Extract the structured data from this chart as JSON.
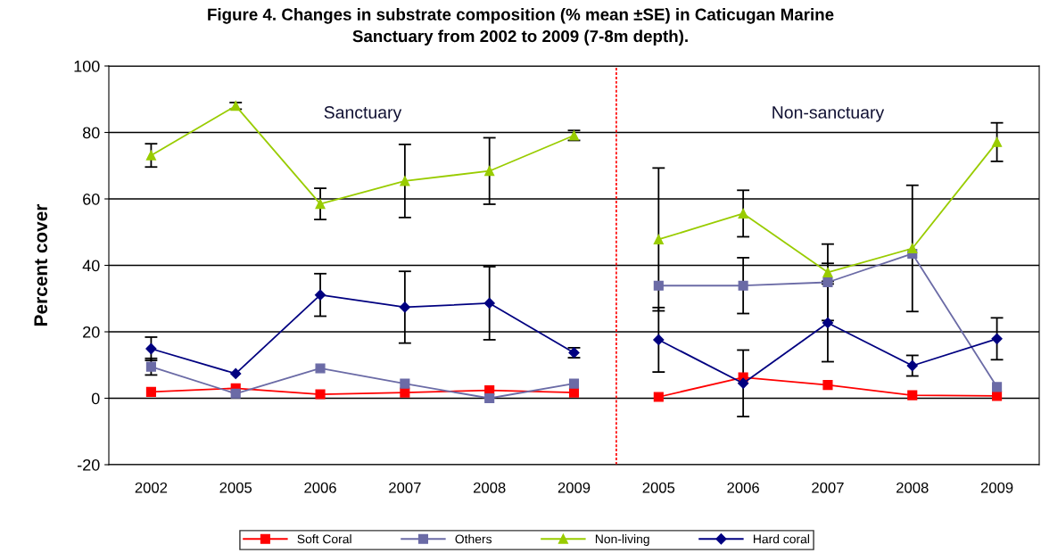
{
  "chart_data": {
    "type": "line",
    "title": "Figure 4. Changes in substrate composition (% mean ±SE) in Caticugan Marine\nSanctuary from 2002 to 2009 (7-8m depth).",
    "ylabel": "Percent cover",
    "categories": [
      "2002",
      "2005",
      "2006",
      "2007",
      "2008",
      "2009",
      "2005",
      "2006",
      "2007",
      "2008",
      "2009"
    ],
    "ylim": [
      -20,
      100
    ],
    "yticks": [
      -20,
      0,
      20,
      40,
      60,
      80,
      100
    ],
    "grid": "y",
    "legend": "bottom",
    "annotations": [
      "Sanctuary",
      "Non-sanctuary"
    ],
    "series": [
      {
        "name": "Soft Coral",
        "color": "#ff0000",
        "marker": "square",
        "values": [
          1.9,
          3.0,
          1.2,
          1.7,
          2.4,
          1.7,
          null,
          null,
          null,
          null,
          null
        ]
      },
      {
        "name": "Others",
        "color": "#6b6ba6",
        "marker": "square",
        "values": [
          9.5,
          1.4,
          9.0,
          4.4,
          0,
          4.4,
          null,
          null,
          null,
          null,
          null
        ],
        "errors": [
          2.5,
          null,
          null,
          null,
          null,
          null,
          null,
          null,
          null,
          null,
          null
        ]
      },
      {
        "name": "Non-living",
        "color": "#99cc00",
        "marker": "triangle",
        "values": [
          73.1,
          88,
          58.5,
          65.4,
          68.4,
          79.1,
          null,
          null,
          null,
          null,
          null
        ],
        "errors": [
          3.5,
          1,
          4.7,
          11,
          10,
          1.5,
          null,
          null,
          null,
          null,
          null
        ]
      },
      {
        "name": "Hard coral",
        "color": "#000080",
        "marker": "diamond",
        "values": [
          14.9,
          7.4,
          31.1,
          27.4,
          28.6,
          13.7,
          null,
          null,
          null,
          null,
          null
        ],
        "errors": [
          3.5,
          null,
          6.4,
          10.8,
          11,
          1.5,
          null,
          null,
          null,
          null,
          null
        ]
      },
      {
        "color": "#ff0000",
        "marker": "square",
        "values": [
          null,
          null,
          null,
          null,
          null,
          null,
          0.4,
          6.3,
          4,
          0.9,
          0.7
        ]
      },
      {
        "color": "#6b6ba6",
        "marker": "square",
        "values": [
          null,
          null,
          null,
          null,
          null,
          null,
          33.9,
          33.9,
          34.9,
          43.5,
          3.4
        ],
        "errors": [
          null,
          null,
          null,
          null,
          null,
          null,
          null,
          8.4,
          11.5,
          null,
          null
        ]
      },
      {
        "color": "#99cc00",
        "marker": "triangle",
        "values": [
          null,
          null,
          null,
          null,
          null,
          null,
          47.8,
          55.6,
          37.9,
          45.1,
          77.1
        ],
        "errors": [
          null,
          null,
          null,
          null,
          null,
          null,
          21.5,
          7,
          2.7,
          19,
          5.8
        ]
      },
      {
        "color": "#000080",
        "marker": "diamond",
        "values": [
          null,
          null,
          null,
          null,
          null,
          null,
          17.6,
          4.5,
          22.7,
          9.8,
          17.9
        ],
        "errors": [
          null,
          null,
          null,
          null,
          null,
          null,
          9.7,
          10,
          11.7,
          3.1,
          6.3
        ]
      }
    ]
  }
}
